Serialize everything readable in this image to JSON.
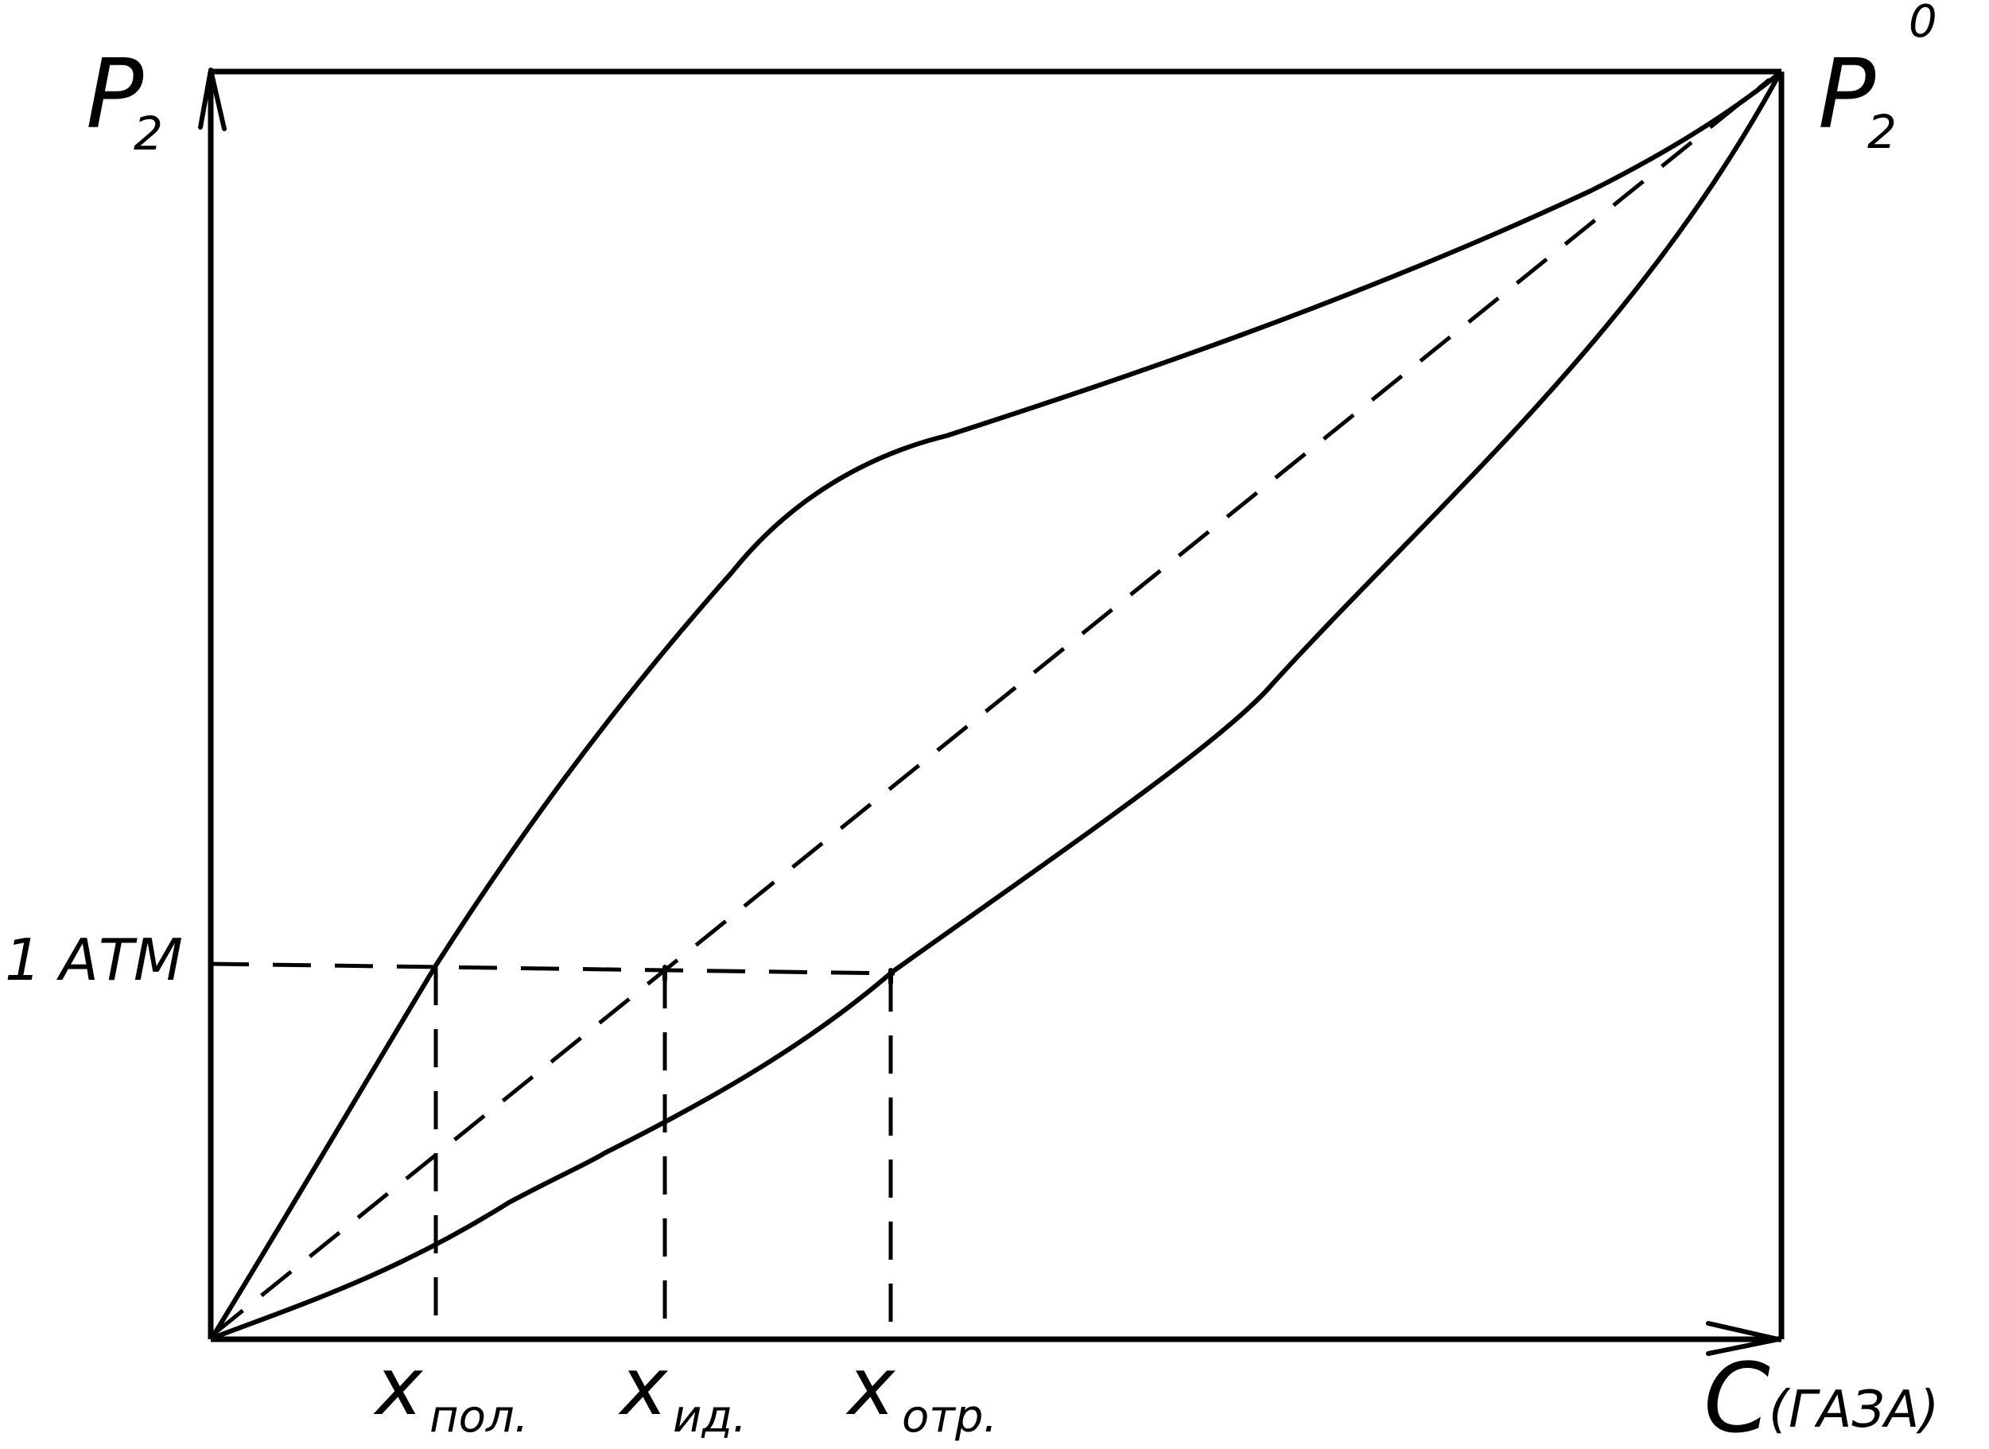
{
  "labels": {
    "y_axis_main": "P",
    "y_axis_sub": "2",
    "corner_main": "P",
    "corner_sub": "2",
    "corner_sup": "0",
    "level_label": "1 АТМ",
    "x_axis_main": "C",
    "x_axis_paren": "(ГАЗА)",
    "x_pol_main": "x",
    "x_pol_sub": "пол.",
    "x_id_main": "x",
    "x_id_sub": "ид.",
    "x_otr_main": "x",
    "x_otr_sub": "отр."
  },
  "colors": {
    "ink": "#000000",
    "background": "#ffffff"
  }
}
